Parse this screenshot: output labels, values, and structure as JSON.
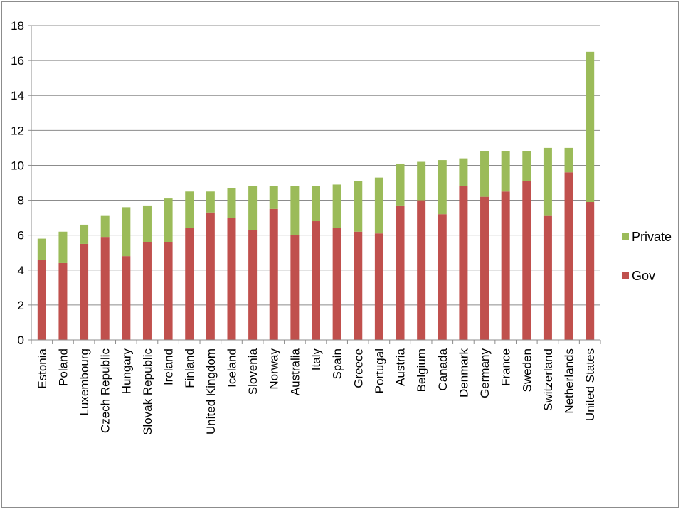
{
  "chart_data": {
    "type": "bar",
    "stacked": true,
    "categories": [
      "Estonia",
      "Poland",
      "Luxembourg",
      "Czech Republic",
      "Hungary",
      "Slovak Republic",
      "Ireland",
      "Finland",
      "United Kingdom",
      "Iceland",
      "Slovenia",
      "Norway",
      "Australia",
      "Italy",
      "Spain",
      "Greece",
      "Portugal",
      "Austria",
      "Belgium",
      "Canada",
      "Denmark",
      "Germany",
      "France",
      "Sweden",
      "Switzerland",
      "Netherlands",
      "United States"
    ],
    "series": [
      {
        "name": "Gov",
        "color": "#c0504d",
        "values": [
          4.6,
          4.4,
          5.5,
          5.9,
          4.8,
          5.6,
          5.6,
          6.4,
          7.3,
          7.0,
          6.3,
          7.5,
          6.0,
          6.8,
          6.4,
          6.2,
          6.1,
          7.7,
          8.0,
          7.2,
          8.8,
          8.2,
          8.5,
          9.1,
          7.1,
          9.6,
          7.9
        ]
      },
      {
        "name": "Private",
        "color": "#9bbb59",
        "values": [
          1.2,
          1.8,
          1.1,
          1.2,
          2.8,
          2.1,
          2.5,
          2.1,
          1.2,
          1.7,
          2.5,
          1.3,
          2.8,
          2.0,
          2.5,
          2.9,
          3.2,
          2.4,
          2.2,
          3.1,
          1.6,
          2.6,
          2.3,
          1.7,
          3.9,
          1.4,
          8.6
        ]
      }
    ],
    "yticks": [
      "0",
      "2",
      "4",
      "6",
      "8",
      "10",
      "12",
      "14",
      "16",
      "18"
    ],
    "ylim": [
      0,
      18
    ],
    "grid": true,
    "legend_position": "right",
    "legend_order": [
      "Private",
      "Gov"
    ],
    "title": "",
    "xlabel": "",
    "ylabel": ""
  }
}
